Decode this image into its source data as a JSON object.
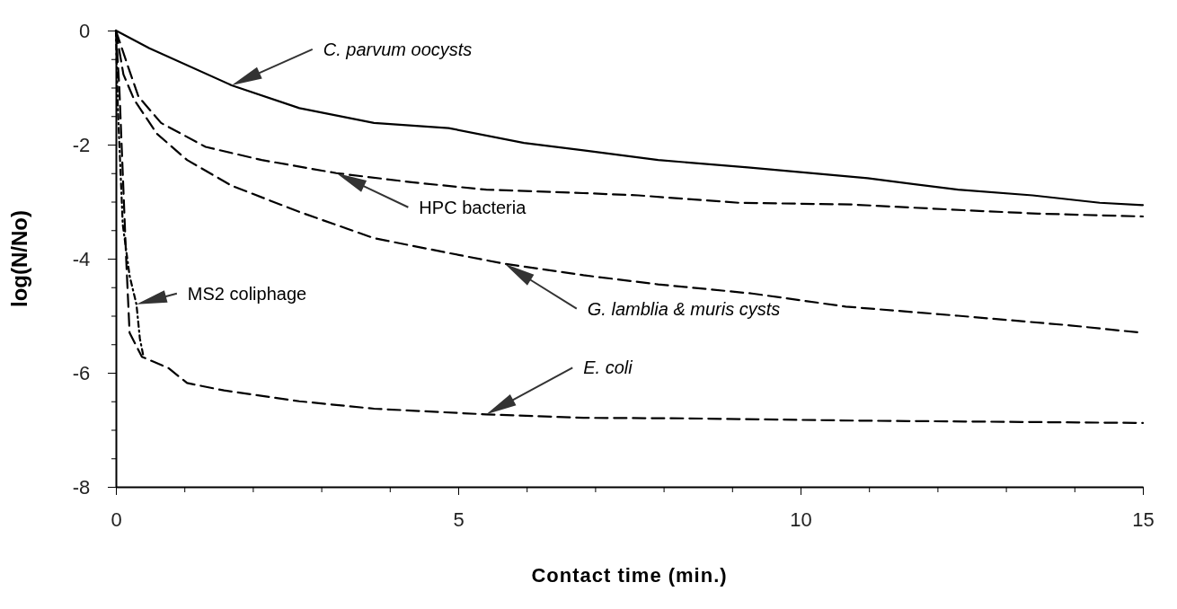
{
  "chart_data": {
    "type": "line",
    "xlabel": "Contact time (min.)",
    "ylabel": "log(N/No)",
    "xlim": [
      0,
      15
    ],
    "xticks": [
      0,
      {
        "value": 1,
        "label": null
      },
      {
        "value": 2,
        "label": null
      },
      {
        "value": 3,
        "label": null
      },
      {
        "value": 4,
        "label": null
      },
      5,
      {
        "value": 6,
        "label": null
      },
      {
        "value": 7,
        "label": null
      },
      {
        "value": 8,
        "label": null
      },
      {
        "value": 9,
        "label": null
      },
      10,
      {
        "value": 11,
        "label": null
      },
      {
        "value": 12,
        "label": null
      },
      {
        "value": 13,
        "label": null
      },
      {
        "value": 14,
        "label": null
      },
      15
    ],
    "ylim": [
      -8,
      0
    ],
    "yticks": [
      -8,
      {
        "value": -7.5,
        "label": null
      },
      {
        "value": -7,
        "label": null
      },
      {
        "value": -6.5,
        "label": null
      },
      -6,
      {
        "value": -5.5,
        "label": null
      },
      {
        "value": -5,
        "label": null
      },
      {
        "value": -4.5,
        "label": null
      },
      -4,
      {
        "value": -3.5,
        "label": null
      },
      {
        "value": -3,
        "label": null
      },
      {
        "value": -2.5,
        "label": null
      },
      -2,
      {
        "value": -1.5,
        "label": null
      },
      {
        "value": -1,
        "label": null
      },
      {
        "value": -0.5,
        "label": null
      },
      0
    ],
    "grid": false,
    "marker": "none",
    "legend": false,
    "series": [
      {
        "name": "C. parvum oocysts",
        "color": "#000000",
        "line_style": "solid",
        "x": [
          0,
          0.49,
          1.69,
          2.68,
          3.77,
          4.86,
          5.96,
          6.83,
          7.92,
          9.23,
          10.98,
          12.3,
          13.39,
          14.37,
          15
        ],
        "values": [
          0,
          -0.31,
          -0.96,
          -1.36,
          -1.62,
          -1.71,
          -1.97,
          -2.1,
          -2.27,
          -2.4,
          -2.59,
          -2.79,
          -2.89,
          -3.02,
          -3.06
        ]
      },
      {
        "name": "HPC bacteria",
        "color": "#000000",
        "line_style": "dashed",
        "x": [
          0,
          0.16,
          0.33,
          0.66,
          1.31,
          2.13,
          3.22,
          4.32,
          5.41,
          6.83,
          7.63,
          9.1,
          10.74,
          12.38,
          13.47,
          15
        ],
        "values": [
          0,
          -0.57,
          -1.16,
          -1.62,
          -2.04,
          -2.27,
          -2.5,
          -2.66,
          -2.79,
          -2.85,
          -2.89,
          -3.02,
          -3.05,
          -3.15,
          -3.21,
          -3.26
        ]
      },
      {
        "name": "G. lamblia & muris cysts",
        "color": "#000000",
        "line_style": "dashed",
        "x": [
          0,
          0.11,
          0.27,
          0.6,
          1.04,
          1.69,
          2.68,
          3.77,
          4.86,
          5.68,
          6.83,
          7.92,
          9.29,
          10.66,
          12.3,
          13.94,
          15
        ],
        "values": [
          0,
          -0.77,
          -1.22,
          -1.81,
          -2.27,
          -2.72,
          -3.18,
          -3.64,
          -3.9,
          -4.09,
          -4.29,
          -4.45,
          -4.61,
          -4.84,
          -5.0,
          -5.17,
          -5.3
        ]
      },
      {
        "name": "MS2 coliphage",
        "color": "#000000",
        "line_style": "dotted",
        "x": [
          0,
          0.03,
          0.1,
          0.2,
          0.3,
          0.35,
          0.4
        ],
        "values": [
          0,
          -1.4,
          -3.4,
          -4.3,
          -4.8,
          -5.4,
          -5.7
        ]
      },
      {
        "name": "E. coli",
        "color": "#000000",
        "line_style": "dashed",
        "x": [
          0,
          0.05,
          0.1,
          0.15,
          0.2,
          0.38,
          0.77,
          1.04,
          1.58,
          2.68,
          3.77,
          5.41,
          6.83,
          8.36,
          10.87,
          15
        ],
        "values": [
          0,
          -1,
          -2.5,
          -4,
          -5.3,
          -5.72,
          -5.92,
          -6.18,
          -6.31,
          -6.5,
          -6.63,
          -6.73,
          -6.79,
          -6.8,
          -6.84,
          -6.88
        ]
      }
    ]
  }
}
